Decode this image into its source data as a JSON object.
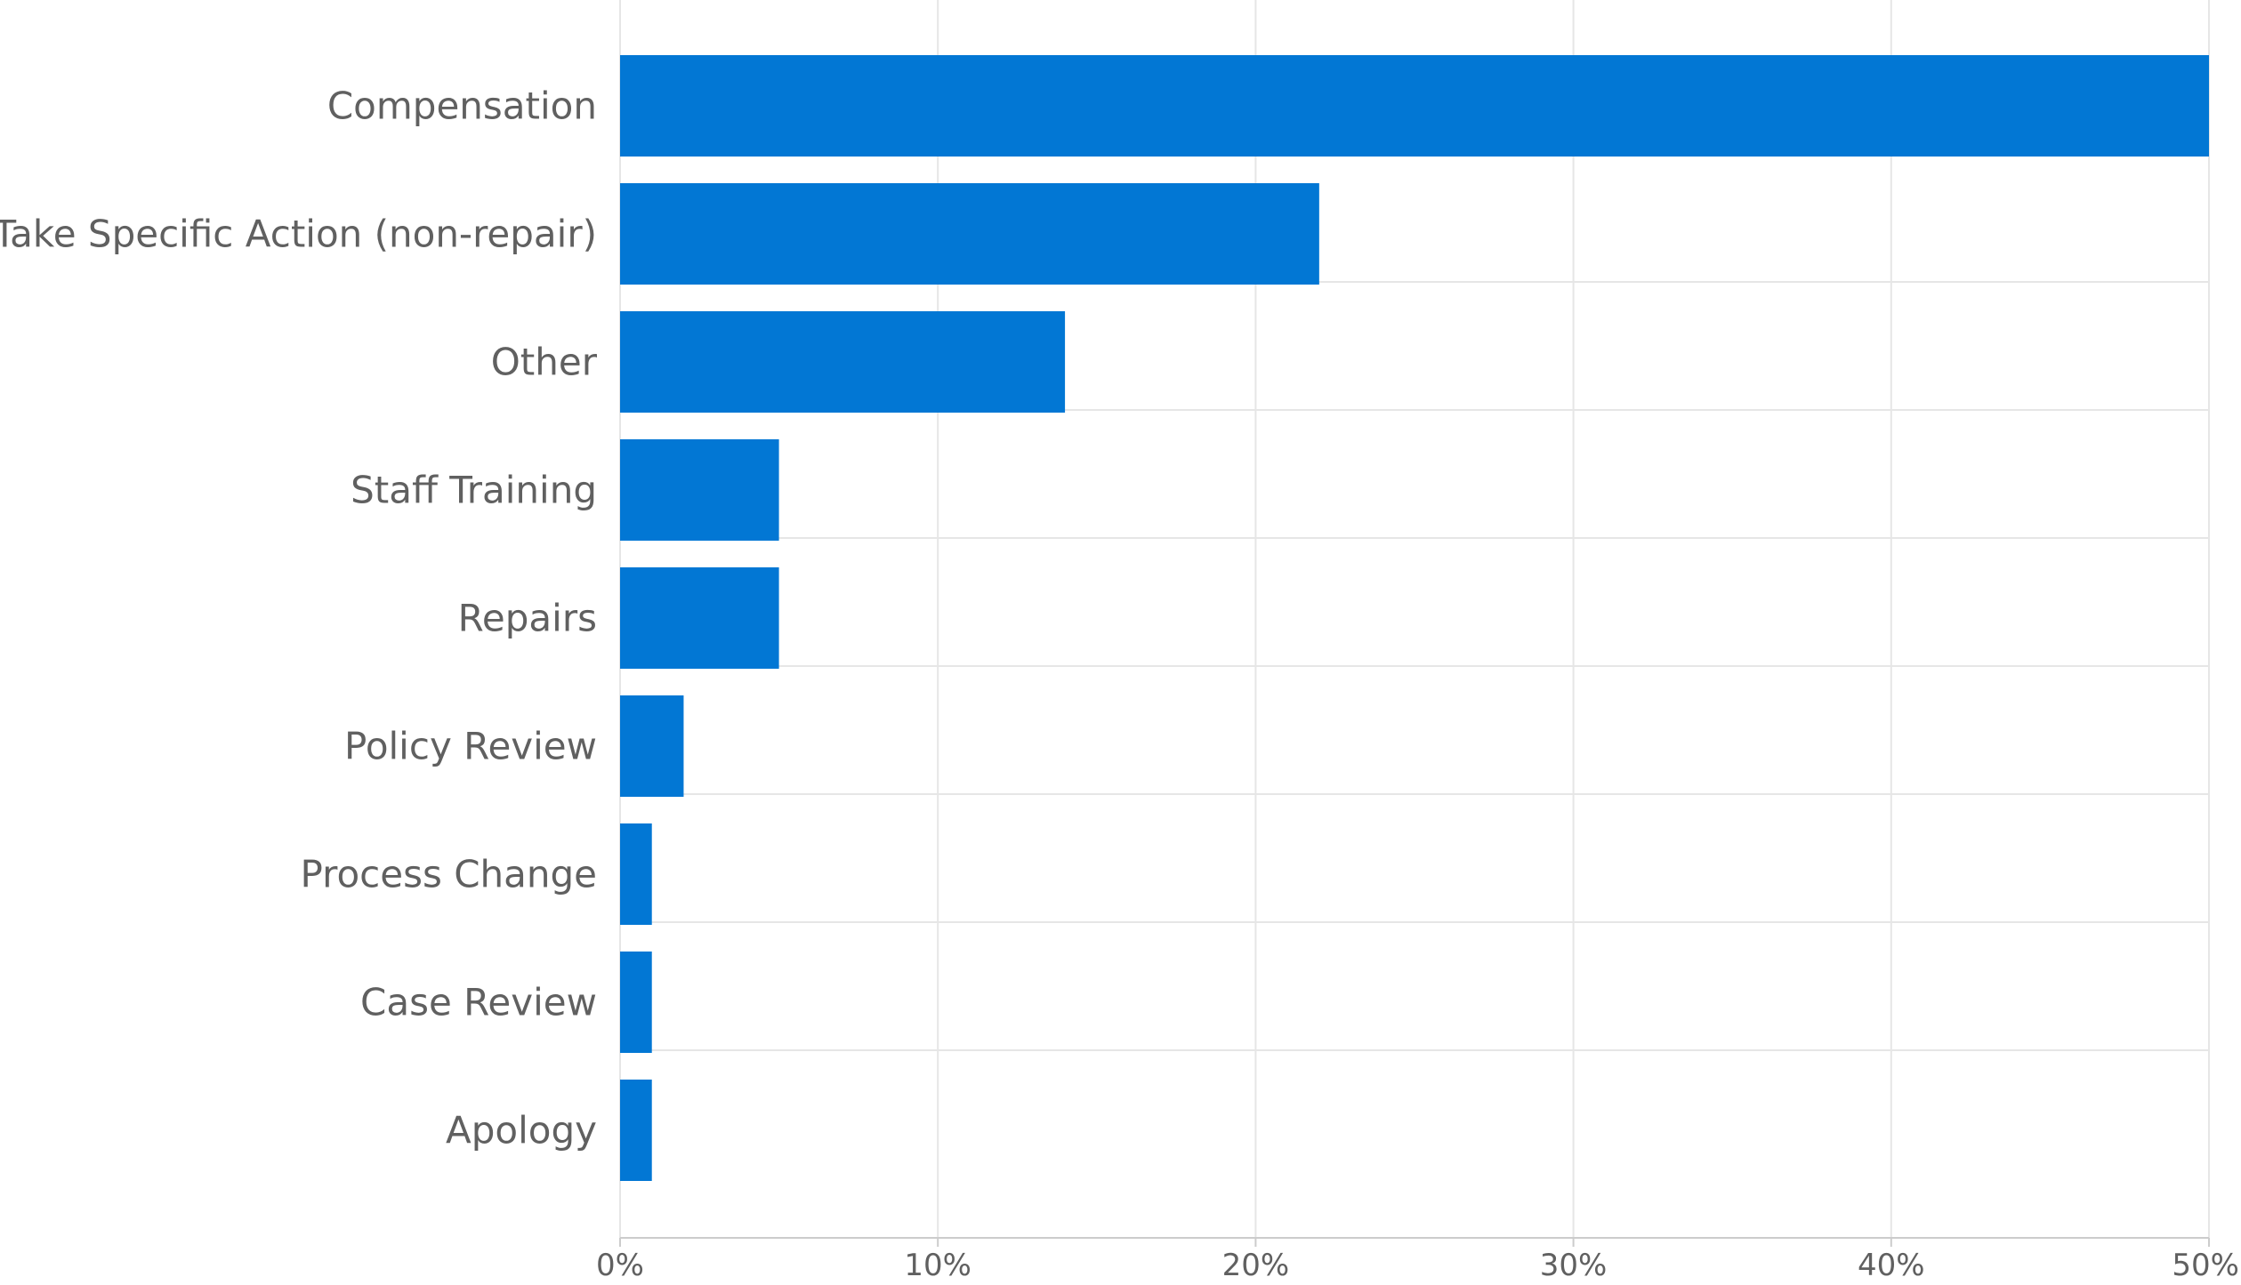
{
  "chart_data": {
    "type": "bar",
    "orientation": "horizontal",
    "title": "",
    "xlabel": "",
    "ylabel": "",
    "categories": [
      "Compensation",
      "Take Specific Action (non-repair)",
      "Other",
      "Staff Training",
      "Repairs",
      "Policy Review",
      "Process Change",
      "Case Review",
      "Apology"
    ],
    "values": [
      50,
      22,
      14,
      5,
      5,
      2,
      1,
      1,
      1
    ],
    "xlim": [
      0,
      50
    ],
    "x_ticks": [
      0,
      10,
      20,
      30,
      40,
      50
    ],
    "x_tick_labels": [
      "0%",
      "10%",
      "20%",
      "30%",
      "40%",
      "50%"
    ],
    "value_unit": "%",
    "grid": true,
    "legend": "none",
    "colors": {
      "bar": "#0277d4",
      "grid": "#e6e6e6",
      "text": "#606060",
      "axis": "#cccccc"
    }
  }
}
